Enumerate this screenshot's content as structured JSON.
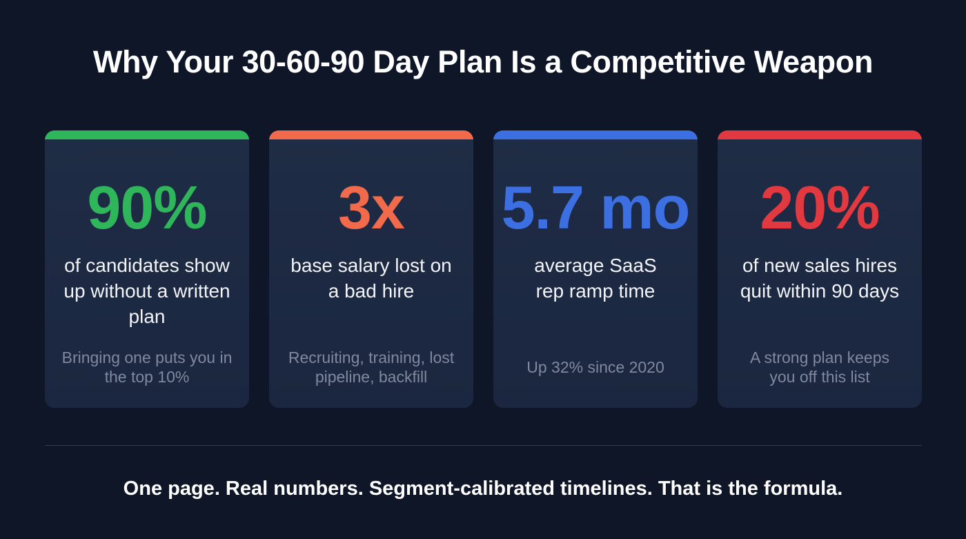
{
  "title": "Why Your 30-60-90 Day Plan Is a Competitive Weapon",
  "cards": [
    {
      "value": "90%",
      "description": "of candidates show up without a written plan",
      "note": "Bringing one puts you in the top 10%",
      "accent": "#2fb65b"
    },
    {
      "value": "3x",
      "description": "base salary lost on a bad hire",
      "note": "Recruiting, training, lost pipeline, backfill",
      "accent": "#f06a4b"
    },
    {
      "value": "5.7 mo",
      "description": "average SaaS rep ramp time",
      "note": "Up 32% since 2020",
      "accent": "#3c70e2"
    },
    {
      "value": "20%",
      "description": "of new sales hires quit within 90 days",
      "note": "A strong plan keeps you off this list",
      "accent": "#e2383f"
    }
  ],
  "footer": "One page. Real numbers. Segment-calibrated timelines. That is the formula."
}
